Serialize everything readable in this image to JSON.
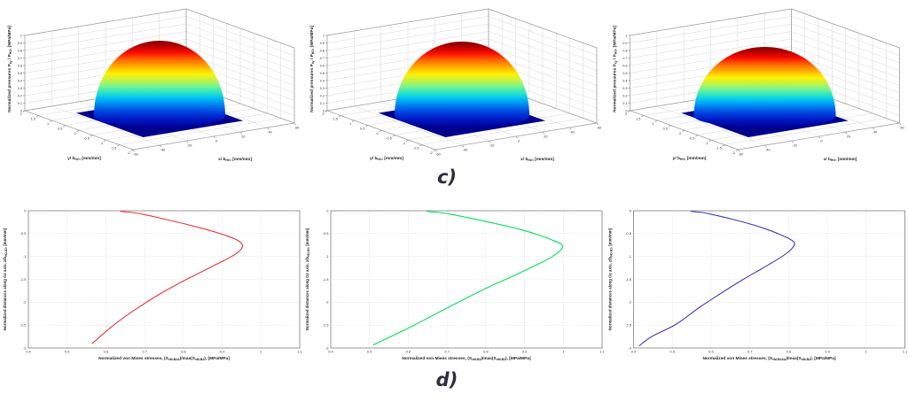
{
  "figure": {
    "panel_c_label": "c)",
    "panel_d_label": "d)",
    "background": "#ffffff"
  },
  "chart_data": [
    {
      "type": "surface",
      "panel": "c",
      "position": 1,
      "colormap": "jet",
      "surface_shape": "hemispherical normalized pressure dome, peak 1.0 at contact center, zero on flat dark-blue contact patch outside",
      "peak_value": 1.0,
      "zlim": [
        0,
        1
      ],
      "zlabel_segments": [
        {
          "t": "Normalized pressures P"
        },
        {
          "t": "xy",
          "sub": true
        },
        {
          "t": " / P"
        },
        {
          "t": "HO",
          "sub": true
        },
        {
          "t": ", [MPa/MPa]"
        }
      ],
      "xlabel_segments": [
        {
          "t": "x/ b"
        },
        {
          "t": "HO",
          "sub": true
        },
        {
          "t": ", [mm/mm]"
        }
      ],
      "ylabel_segments": [
        {
          "t": "y/ b"
        },
        {
          "t": "HO",
          "sub": true
        },
        {
          "t": ", [mm/mm]"
        }
      ],
      "zticks": [
        0,
        0.1,
        0.2,
        0.3,
        0.4,
        0.5,
        0.6,
        0.7,
        0.8,
        0.9,
        1
      ],
      "xticks": [
        -60,
        -40,
        -20,
        0,
        20,
        40,
        60
      ],
      "yticks": [
        -2,
        -1.5,
        -1,
        -0.5,
        0,
        0.5,
        1,
        1.5,
        2
      ],
      "patch_color": "#00008c",
      "dome": {
        "rx": 74,
        "height": 85
      }
    },
    {
      "type": "surface",
      "panel": "c",
      "position": 2,
      "colormap": "jet",
      "surface_shape": "hemispherical normalized pressure dome, peak 1.0 at contact center, zero on flat dark-blue contact patch outside",
      "peak_value": 1.0,
      "zlim": [
        0,
        1
      ],
      "zlabel_segments": [
        {
          "t": "Normalized pressures P"
        },
        {
          "t": "xy",
          "sub": true
        },
        {
          "t": " / P"
        },
        {
          "t": "HO",
          "sub": true
        },
        {
          "t": ", [MPa/MPa]"
        }
      ],
      "xlabel_segments": [
        {
          "t": "x/ b"
        },
        {
          "t": "HO",
          "sub": true
        },
        {
          "t": ", [mm/mm]"
        }
      ],
      "ylabel_segments": [
        {
          "t": "y/ b"
        },
        {
          "t": "HO",
          "sub": true
        },
        {
          "t": ", [mm/mm]"
        }
      ],
      "zticks": [
        0,
        0.1,
        0.2,
        0.3,
        0.4,
        0.5,
        0.6,
        0.7,
        0.8,
        0.9,
        1
      ],
      "xticks": [
        -60,
        -40,
        -20,
        0,
        20,
        40,
        60
      ],
      "yticks": [
        -2,
        -1.5,
        -1,
        -0.5,
        0,
        0.5,
        1,
        1.5,
        2
      ],
      "patch_color": "#00008c",
      "dome": {
        "rx": 76,
        "height": 84
      }
    },
    {
      "type": "surface",
      "panel": "c",
      "position": 3,
      "colormap": "jet",
      "surface_shape": "hemispherical normalized pressure dome, slightly wider and flatter, peak 1.0 at contact center, zero on flat dark-blue contact patch outside",
      "peak_value": 1.0,
      "zlim": [
        0,
        1
      ],
      "zlabel_segments": [
        {
          "t": "Normalized pressures P"
        },
        {
          "t": "xy",
          "sub": true
        },
        {
          "t": " / P"
        },
        {
          "t": "HO",
          "sub": true
        },
        {
          "t": ", [MPa/MPa]"
        }
      ],
      "xlabel_segments": [
        {
          "t": "x/ b"
        },
        {
          "t": "HO",
          "sub": true
        },
        {
          "t": ", [mm/mm]"
        }
      ],
      "ylabel_segments": [
        {
          "t": "y/ b"
        },
        {
          "t": "HO",
          "sub": true
        },
        {
          "t": ", [mm/mm]"
        }
      ],
      "zticks": [
        0,
        0.1,
        0.2,
        0.3,
        0.4,
        0.5,
        0.6,
        0.7,
        0.8,
        0.9,
        1
      ],
      "xticks": [
        -60,
        -40,
        -20,
        0,
        20,
        40,
        60
      ],
      "yticks": [
        -2,
        -1.5,
        -1,
        -0.5,
        0,
        0.5,
        1,
        1.5,
        2
      ],
      "patch_color": "#00008c",
      "dome": {
        "rx": 80,
        "height": 78
      }
    },
    {
      "type": "line",
      "panel": "d",
      "position": 1,
      "color": "#ee3434",
      "xlabel_segments": [
        {
          "t": "Normalized von Mises stresses,  (S"
        },
        {
          "t": "vM-B2A",
          "sub": true
        },
        {
          "t": ")/max(S"
        },
        {
          "t": "vM-B2",
          "sub": true
        },
        {
          "t": "), [MPa/MPa]"
        }
      ],
      "ylabel_segments": [
        {
          "t": "Normalized distances along Oz axis, z/b"
        },
        {
          "t": "HO-B2",
          "sub": true
        },
        {
          "t": ", [mm/mm]"
        }
      ],
      "xlim": [
        0.4,
        1.1
      ],
      "ylim": [
        -3,
        0
      ],
      "xticks": [
        0.4,
        0.5,
        0.6,
        0.7,
        0.8,
        0.9,
        1,
        1.1
      ],
      "yticks": [
        0,
        -0.5,
        -1,
        -1.5,
        -2,
        -2.5,
        -3
      ],
      "points": [
        [
          0.638,
          -0.01
        ],
        [
          0.646,
          -0.022
        ],
        [
          0.668,
          -0.038
        ],
        [
          0.7,
          -0.085
        ],
        [
          0.745,
          -0.17
        ],
        [
          0.8,
          -0.28
        ],
        [
          0.855,
          -0.4
        ],
        [
          0.902,
          -0.52
        ],
        [
          0.936,
          -0.63
        ],
        [
          0.952,
          -0.74
        ],
        [
          0.947,
          -0.86
        ],
        [
          0.924,
          -1.0
        ],
        [
          0.888,
          -1.16
        ],
        [
          0.843,
          -1.35
        ],
        [
          0.79,
          -1.58
        ],
        [
          0.733,
          -1.85
        ],
        [
          0.672,
          -2.18
        ],
        [
          0.617,
          -2.52
        ],
        [
          0.565,
          -2.9
        ]
      ]
    },
    {
      "type": "line",
      "panel": "d",
      "position": 2,
      "color": "#00df55",
      "xlabel_segments": [
        {
          "t": "Normalized von Mises stresses,  (S"
        },
        {
          "t": "vM-B2",
          "sub": true
        },
        {
          "t": ")/max(S"
        },
        {
          "t": "vM-B2",
          "sub": true
        },
        {
          "t": "), [MPa/MPa]"
        }
      ],
      "ylabel_segments": [
        {
          "t": "Normalized distances along Oz axis, z/b"
        },
        {
          "t": "HO-B2",
          "sub": true
        },
        {
          "t": ", [mm/mm]"
        }
      ],
      "xlim": [
        0.4,
        1.1
      ],
      "ylim": [
        -3,
        0
      ],
      "xticks": [
        0.4,
        0.5,
        0.6,
        0.7,
        0.8,
        0.9,
        1,
        1.1
      ],
      "yticks": [
        0,
        -0.5,
        -1,
        -1.5,
        -2,
        -2.5,
        -3
      ],
      "points": [
        [
          0.648,
          -0.01
        ],
        [
          0.656,
          -0.022
        ],
        [
          0.68,
          -0.038
        ],
        [
          0.715,
          -0.085
        ],
        [
          0.765,
          -0.17
        ],
        [
          0.825,
          -0.28
        ],
        [
          0.885,
          -0.4
        ],
        [
          0.933,
          -0.52
        ],
        [
          0.968,
          -0.63
        ],
        [
          0.993,
          -0.72
        ],
        [
          0.998,
          -0.8
        ],
        [
          0.988,
          -0.9
        ],
        [
          0.962,
          -1.05
        ],
        [
          0.922,
          -1.22
        ],
        [
          0.872,
          -1.42
        ],
        [
          0.812,
          -1.65
        ],
        [
          0.745,
          -1.93
        ],
        [
          0.672,
          -2.25
        ],
        [
          0.592,
          -2.6
        ],
        [
          0.51,
          -2.93
        ]
      ]
    },
    {
      "type": "line",
      "panel": "d",
      "position": 3,
      "color": "#3c3cb8",
      "xlabel_segments": [
        {
          "t": "Normalized von Mises stresses,  (S"
        },
        {
          "t": "vM-B2AA",
          "sub": true
        },
        {
          "t": ")/max(S"
        },
        {
          "t": "vM-B2",
          "sub": true
        },
        {
          "t": "), [MPa/MPa]"
        }
      ],
      "ylabel_segments": [
        {
          "t": "Normalized distances along Oz axis, z/b"
        },
        {
          "t": "HO-B2",
          "sub": true
        },
        {
          "t": ", [mm/mm]"
        }
      ],
      "xlim": [
        0.4,
        1.1
      ],
      "ylim": [
        -3,
        0
      ],
      "xticks": [
        0.4,
        0.5,
        0.6,
        0.7,
        0.8,
        0.9,
        1,
        1.1
      ],
      "yticks": [
        0,
        -0.5,
        -1,
        -1.5,
        -2,
        -2.5,
        -3
      ],
      "points": [
        [
          0.548,
          -0.01
        ],
        [
          0.556,
          -0.022
        ],
        [
          0.578,
          -0.038
        ],
        [
          0.605,
          -0.085
        ],
        [
          0.648,
          -0.17
        ],
        [
          0.697,
          -0.28
        ],
        [
          0.742,
          -0.4
        ],
        [
          0.778,
          -0.52
        ],
        [
          0.803,
          -0.62
        ],
        [
          0.815,
          -0.7
        ],
        [
          0.811,
          -0.8
        ],
        [
          0.795,
          -0.93
        ],
        [
          0.768,
          -1.08
        ],
        [
          0.73,
          -1.27
        ],
        [
          0.683,
          -1.5
        ],
        [
          0.63,
          -1.78
        ],
        [
          0.572,
          -2.1
        ],
        [
          0.51,
          -2.48
        ],
        [
          0.447,
          -2.75
        ],
        [
          0.415,
          -2.95
        ]
      ]
    }
  ]
}
